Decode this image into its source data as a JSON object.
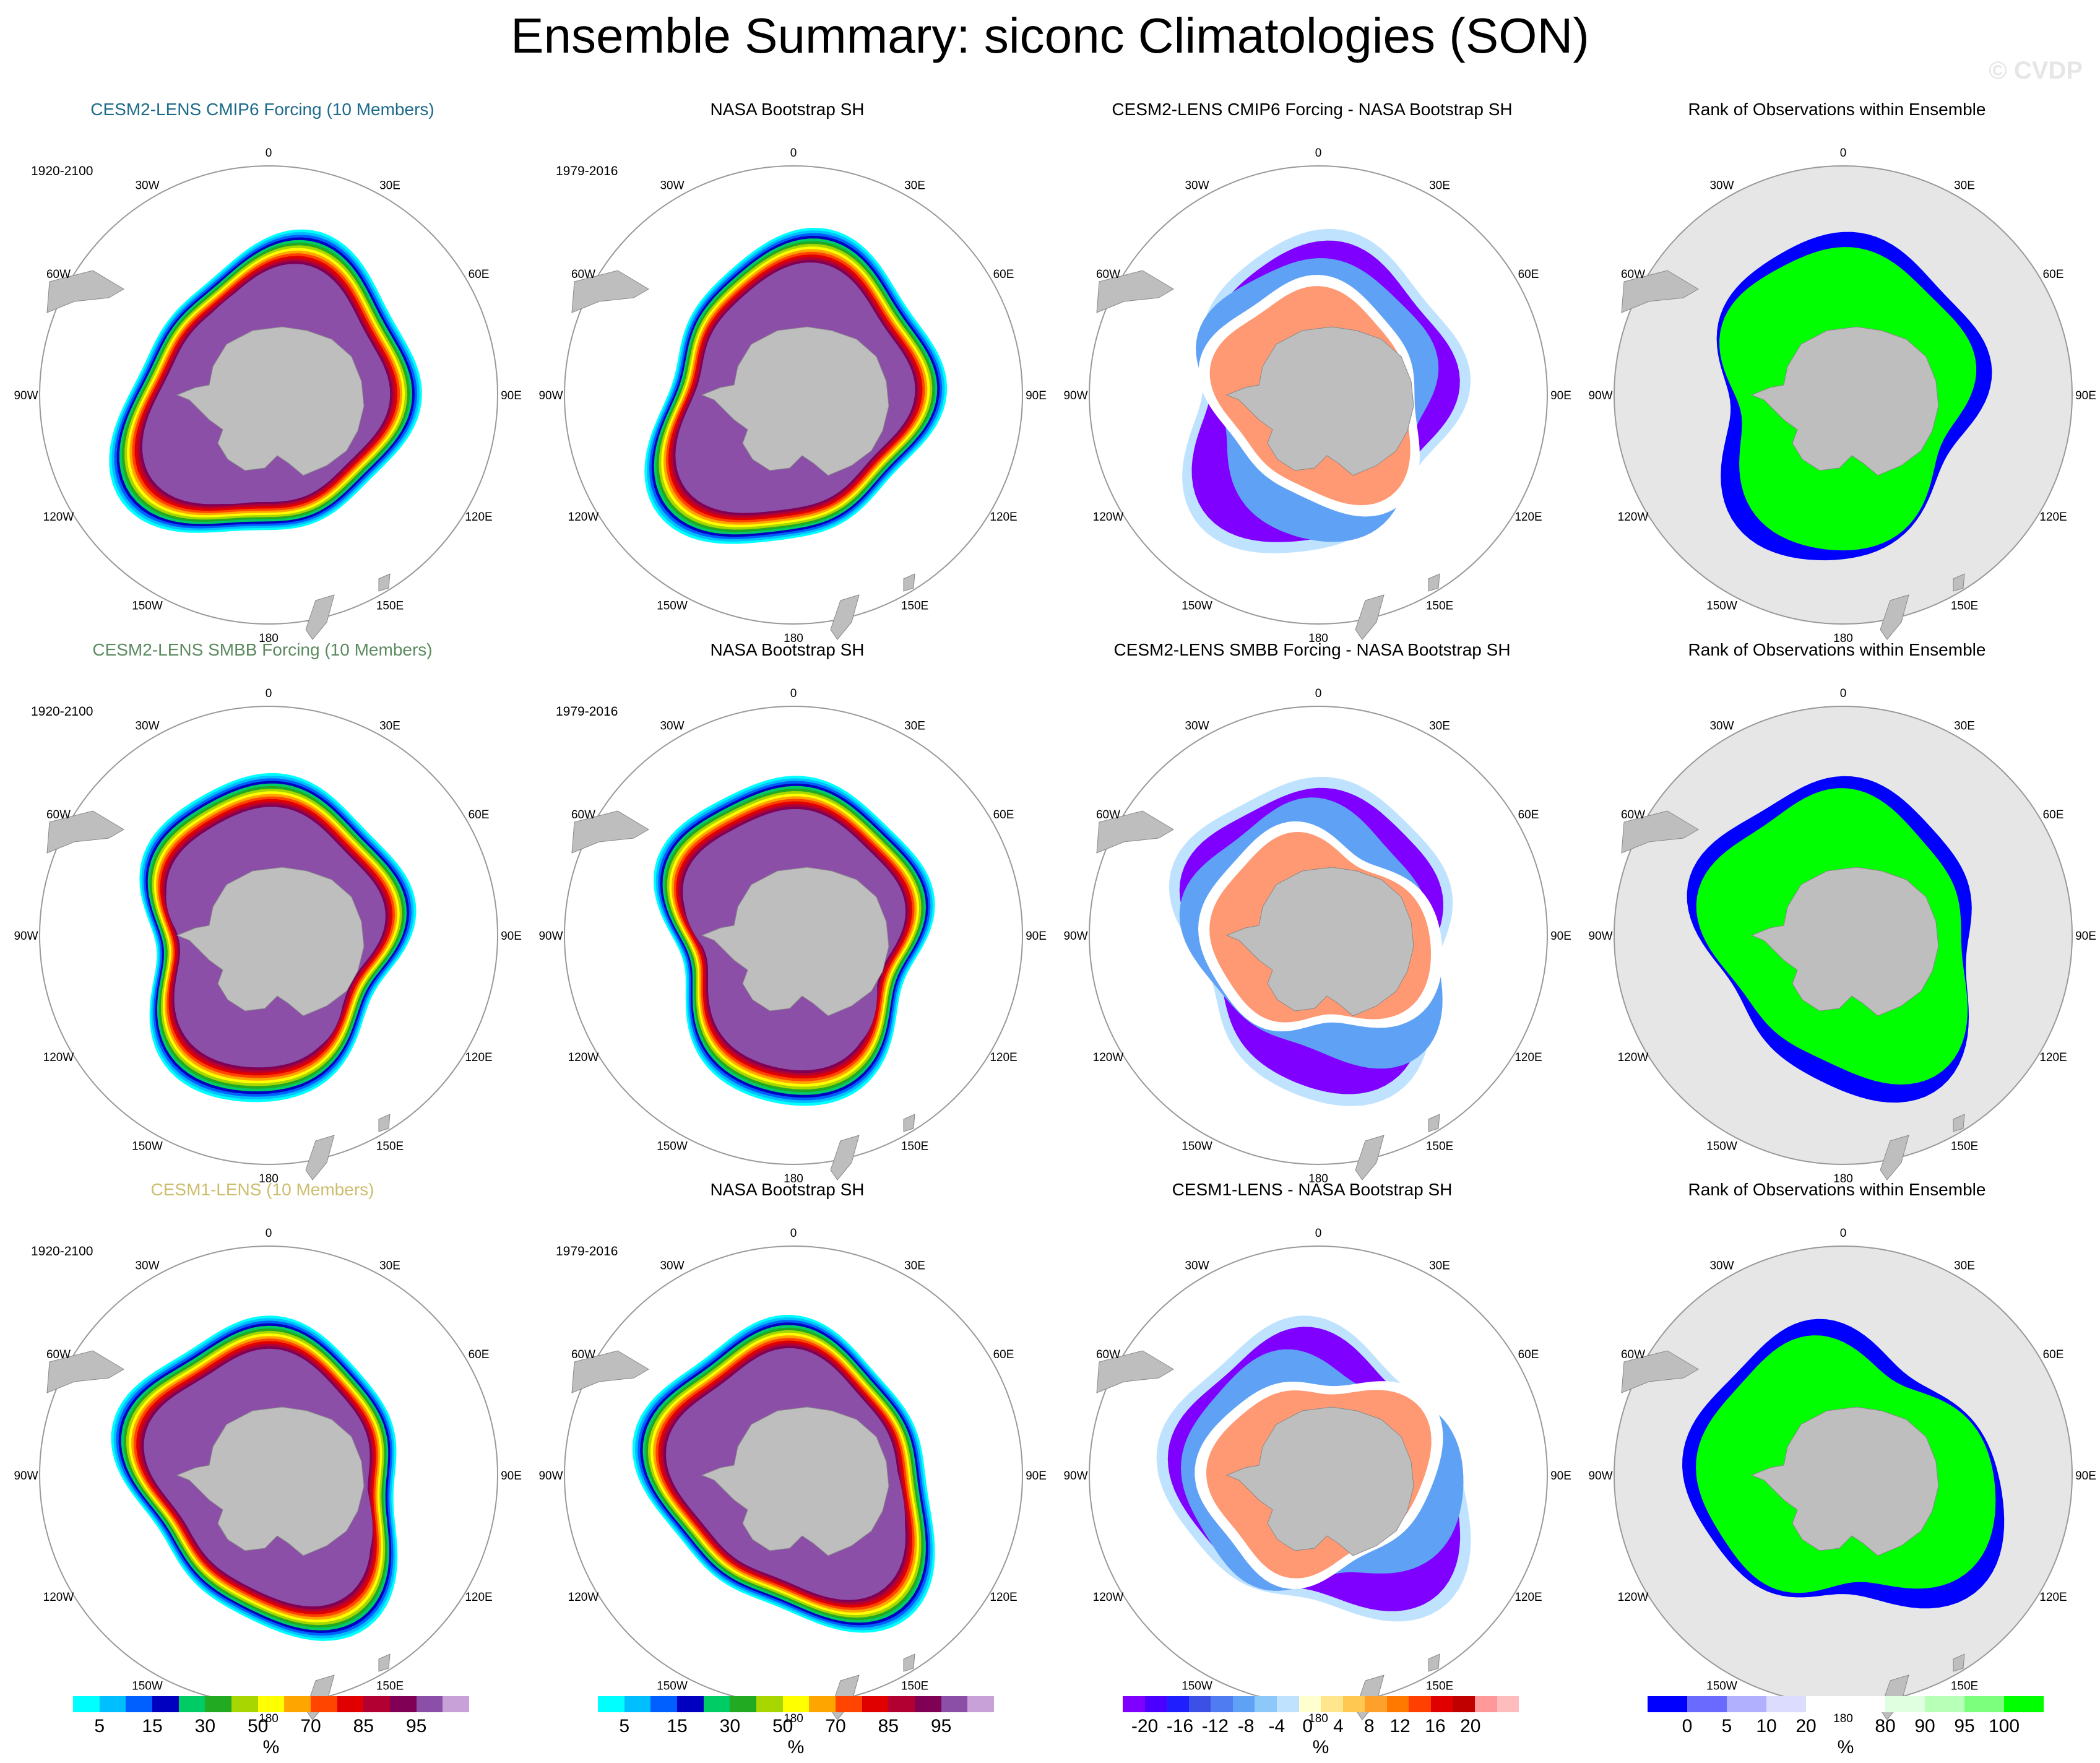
{
  "title": "Ensemble Summary: siconc Climatologies (SON)",
  "watermark": "© CVDP",
  "rows": [
    {
      "panels": [
        {
          "kind": "model",
          "title": "CESM2-LENS CMIP6 Forcing (10 Members)",
          "title_color": "#1d6a8a",
          "period": "1920-2100"
        },
        {
          "kind": "obs",
          "title": "NASA Bootstrap SH",
          "title_color": "#000000",
          "period": "1979-2016"
        },
        {
          "kind": "diff",
          "title": "CESM2-LENS CMIP6 Forcing - NASA Bootstrap SH",
          "title_color": "#000000",
          "period": ""
        },
        {
          "kind": "rank",
          "title": "Rank of Observations within Ensemble",
          "title_color": "#000000",
          "period": ""
        }
      ]
    },
    {
      "panels": [
        {
          "kind": "model",
          "title": "CESM2-LENS SMBB Forcing (10 Members)",
          "title_color": "#5b8a5f",
          "period": "1920-2100"
        },
        {
          "kind": "obs",
          "title": "NASA Bootstrap SH",
          "title_color": "#000000",
          "period": "1979-2016"
        },
        {
          "kind": "diff",
          "title": "CESM2-LENS SMBB Forcing - NASA Bootstrap SH",
          "title_color": "#000000",
          "period": ""
        },
        {
          "kind": "rank",
          "title": "Rank of Observations within Ensemble",
          "title_color": "#000000",
          "period": ""
        }
      ]
    },
    {
      "panels": [
        {
          "kind": "model",
          "title": "CESM1-LENS (10 Members)",
          "title_color": "#cdbd6e",
          "period": "1920-2100"
        },
        {
          "kind": "obs",
          "title": "NASA Bootstrap SH",
          "title_color": "#000000",
          "period": "1979-2016"
        },
        {
          "kind": "diff",
          "title": "CESM1-LENS - NASA Bootstrap SH",
          "title_color": "#000000",
          "period": ""
        },
        {
          "kind": "rank",
          "title": "Rank of Observations within Ensemble",
          "title_color": "#000000",
          "period": ""
        }
      ]
    }
  ],
  "lon_labels": [
    "0",
    "30E",
    "60E",
    "90E",
    "120E",
    "150E",
    "180",
    "150W",
    "120W",
    "90W",
    "60W",
    "30W"
  ],
  "colorbars": [
    {
      "unit": "%",
      "colors": [
        "#00ffff",
        "#00bfff",
        "#0060ff",
        "#0000c0",
        "#00cc66",
        "#22aa22",
        "#a8d600",
        "#ffff00",
        "#ffa500",
        "#ff4500",
        "#e00000",
        "#b30032",
        "#800055",
        "#8b4fa8",
        "#c7a1d8"
      ],
      "ticks": [
        "5",
        "15",
        "30",
        "50",
        "70",
        "85",
        "95"
      ],
      "tick_after_cell": [
        1,
        3,
        5,
        7,
        9,
        11,
        13
      ]
    },
    {
      "unit": "%",
      "colors": [
        "#00ffff",
        "#00bfff",
        "#0060ff",
        "#0000c0",
        "#00cc66",
        "#22aa22",
        "#a8d600",
        "#ffff00",
        "#ffa500",
        "#ff4500",
        "#e00000",
        "#b30032",
        "#800055",
        "#8b4fa8",
        "#c7a1d8"
      ],
      "ticks": [
        "5",
        "15",
        "30",
        "50",
        "70",
        "85",
        "95"
      ],
      "tick_after_cell": [
        1,
        3,
        5,
        7,
        9,
        11,
        13
      ]
    },
    {
      "unit": "%",
      "colors": [
        "#7f00ff",
        "#4b00ff",
        "#1e1eff",
        "#3c50e6",
        "#4f7cf0",
        "#5fa2f5",
        "#8cc8fa",
        "#bfe3ff",
        "#ffffd0",
        "#ffe68c",
        "#ffc850",
        "#ffa02d",
        "#ff7800",
        "#ff4000",
        "#e00000",
        "#c00000",
        "#ff9999",
        "#ffbcbc"
      ],
      "ticks": [
        "-20",
        "-16",
        "-12",
        "-8",
        "-4",
        "0",
        "4",
        "8",
        "12",
        "16",
        "20"
      ],
      "tick_after_cell": [
        1,
        2.6,
        4.2,
        5.6,
        7,
        8.4,
        9.8,
        11.2,
        12.6,
        14.2,
        15.8
      ]
    },
    {
      "unit": "%",
      "colors": [
        "#0000ff",
        "#6a6aff",
        "#b0b0ff",
        "#dcdcff",
        "#ffffff",
        "#ffffff",
        "#e0ffe0",
        "#b8ffb8",
        "#7cff7c",
        "#00ff00"
      ],
      "ticks": [
        "0",
        "5",
        "10",
        "20",
        "80",
        "90",
        "95",
        "100"
      ],
      "tick_after_cell": [
        1,
        2,
        3,
        4,
        6,
        7,
        8,
        9
      ]
    }
  ]
}
